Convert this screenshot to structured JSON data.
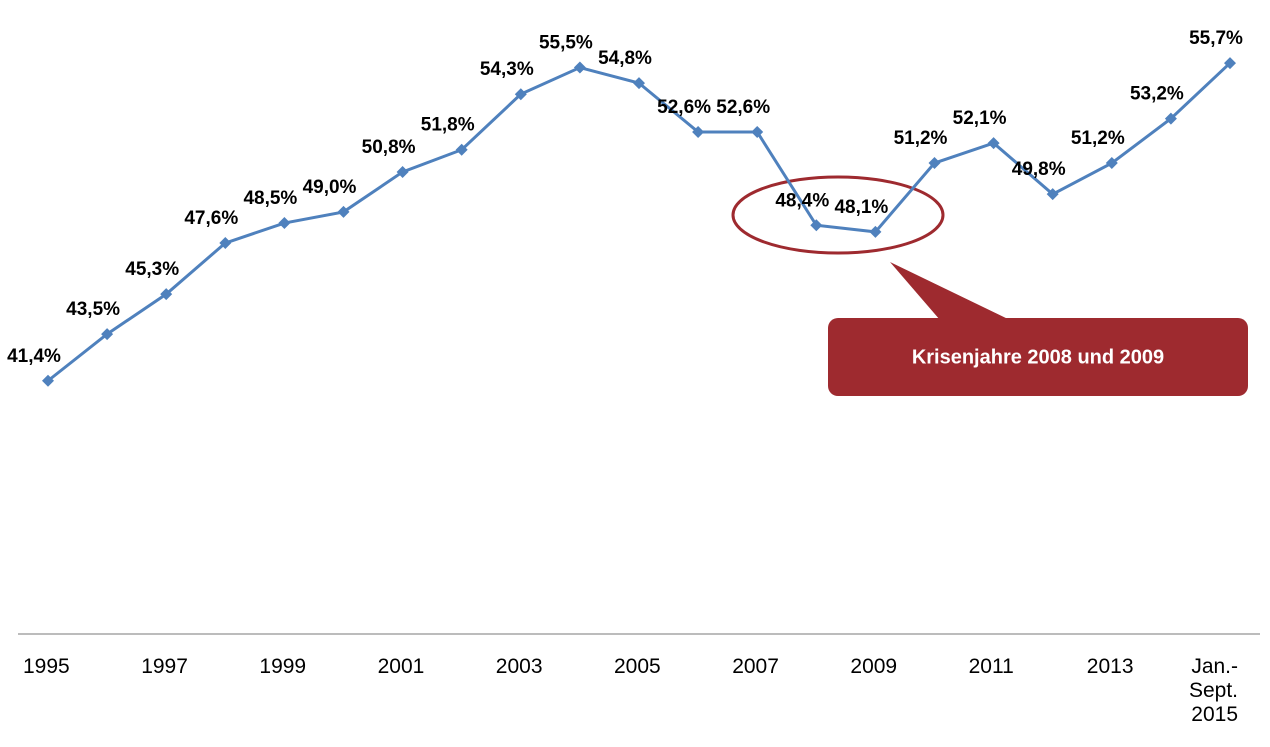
{
  "chart_data": {
    "type": "line",
    "categories": [
      "1995",
      null,
      "1997",
      null,
      "1999",
      null,
      "2001",
      null,
      "2003",
      null,
      "2005",
      null,
      "2007",
      null,
      "2009",
      null,
      "2011",
      null,
      "2013",
      null,
      "Jan.-\nSept.\n2015"
    ],
    "series": [
      {
        "name": null,
        "color": "#4f81bd",
        "values": [
          41.4,
          43.5,
          45.3,
          47.6,
          48.5,
          49.0,
          50.8,
          51.8,
          54.3,
          55.5,
          54.8,
          52.6,
          52.6,
          48.4,
          48.1,
          51.2,
          52.1,
          49.8,
          51.2,
          53.2,
          55.7
        ],
        "value_labels": [
          "41,4%",
          "43,5%",
          "45,3%",
          "47,6%",
          "48,5%",
          "49,0%",
          "50,8%",
          "51,8%",
          "54,3%",
          "55,5%",
          "54,8%",
          "52,6%",
          "52,6%",
          "48,4%",
          "48,1%",
          "51,2%",
          "52,1%",
          "49,8%",
          "51,2%",
          "53,2%",
          "55,7%"
        ]
      }
    ],
    "ylim": [
      30,
      58
    ],
    "annotation": "Krisenjahre 2008 und 2009"
  }
}
